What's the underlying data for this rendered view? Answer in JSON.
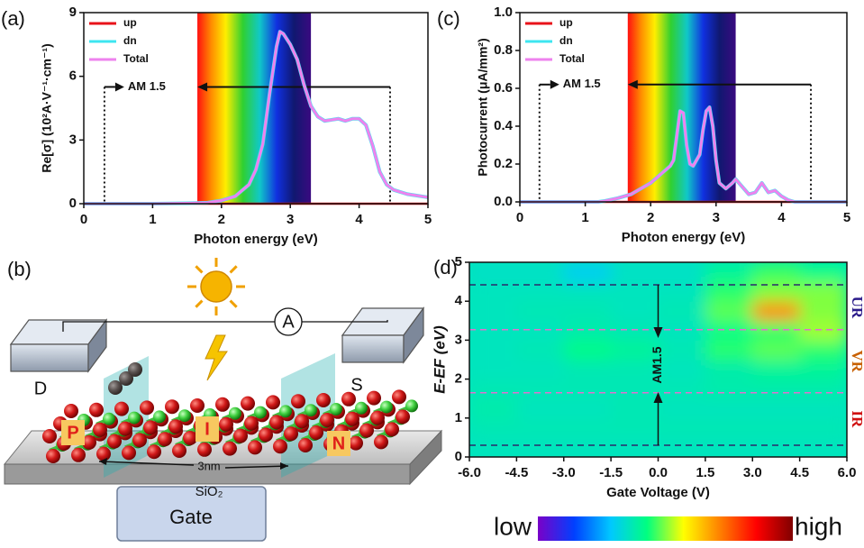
{
  "chart_data": [
    {
      "type": "line",
      "panel_label": "(a)",
      "xlabel": "Photon energy (eV)",
      "ylabel": "Re[σ] (10²A·V⁻¹·cm⁻¹)",
      "xlim": [
        0,
        5
      ],
      "xticks": [
        0,
        1,
        2,
        3,
        4,
        5
      ],
      "ylim": [
        0,
        9
      ],
      "yticks": [
        0,
        3,
        6,
        9
      ],
      "band": [
        1.65,
        3.3
      ],
      "legend": "upper left",
      "annotation": {
        "text": "AM 1.5",
        "x": [
          0.3,
          4.45
        ],
        "y": 5.5
      },
      "x": [
        0,
        0.5,
        1,
        1.5,
        1.8,
        2.0,
        2.2,
        2.4,
        2.5,
        2.6,
        2.7,
        2.8,
        2.85,
        2.9,
        3.0,
        3.1,
        3.2,
        3.3,
        3.4,
        3.5,
        3.6,
        3.7,
        3.8,
        3.9,
        4.0,
        4.1,
        4.2,
        4.3,
        4.4,
        4.5,
        4.7,
        5.0
      ],
      "series": [
        {
          "name": "up",
          "color": "#e8121a",
          "values": [
            0,
            0,
            0,
            0,
            0,
            0,
            0,
            0,
            0,
            0,
            0,
            0,
            0,
            0,
            0,
            0,
            0,
            0,
            0,
            0,
            0,
            0,
            0,
            0,
            0,
            0,
            0,
            0,
            0,
            0,
            0,
            0
          ]
        },
        {
          "name": "dn",
          "color": "#3ee6f0",
          "values": [
            0,
            0,
            0,
            0.02,
            0.05,
            0.15,
            0.35,
            0.9,
            1.6,
            2.8,
            5.2,
            7.4,
            8.1,
            8.0,
            7.5,
            6.8,
            5.6,
            4.6,
            4.1,
            3.9,
            3.95,
            4.0,
            3.9,
            4.0,
            4.0,
            3.7,
            2.7,
            1.5,
            0.9,
            0.65,
            0.45,
            0.3
          ]
        },
        {
          "name": "Total",
          "color": "#ee82ee",
          "values": [
            0,
            0,
            0,
            0.02,
            0.05,
            0.15,
            0.35,
            0.9,
            1.6,
            2.8,
            5.2,
            7.4,
            8.1,
            8.0,
            7.5,
            6.8,
            5.6,
            4.6,
            4.1,
            3.9,
            3.95,
            4.0,
            3.9,
            4.0,
            4.0,
            3.7,
            2.7,
            1.5,
            0.9,
            0.65,
            0.45,
            0.3
          ]
        }
      ]
    },
    {
      "type": "line",
      "panel_label": "(c)",
      "xlabel": "Photon energy (eV)",
      "ylabel": "Photocurrent (μA/mm²)",
      "xlim": [
        0,
        5
      ],
      "xticks": [
        0,
        1,
        2,
        3,
        4,
        5
      ],
      "ylim": [
        0,
        1
      ],
      "yticks": [
        {
          "value": 0,
          "label": "0.0"
        },
        0.2,
        0.4,
        0.6,
        0.8,
        {
          "value": 1,
          "label": "1.0"
        }
      ],
      "band": [
        1.65,
        3.3
      ],
      "legend": "upper left",
      "annotation": {
        "text": "AM 1.5",
        "x": [
          0.3,
          4.45
        ],
        "y": 0.62
      },
      "x": [
        0,
        0.5,
        1.0,
        1.2,
        1.3,
        1.5,
        1.7,
        1.9,
        2.0,
        2.1,
        2.2,
        2.3,
        2.35,
        2.4,
        2.45,
        2.5,
        2.55,
        2.6,
        2.65,
        2.75,
        2.8,
        2.85,
        2.9,
        2.95,
        3.0,
        3.05,
        3.15,
        3.25,
        3.3,
        3.4,
        3.5,
        3.6,
        3.7,
        3.8,
        3.9,
        4.0,
        4.1,
        4.2,
        5.0
      ],
      "series": [
        {
          "name": "up",
          "color": "#e8121a",
          "values": [
            0,
            0,
            0,
            0,
            0,
            0,
            0,
            0,
            0,
            0,
            0,
            0,
            0,
            0,
            0,
            0,
            0,
            0,
            0,
            0,
            0,
            0,
            0,
            0,
            0,
            0,
            0,
            0,
            0,
            0,
            0,
            0,
            0,
            0,
            0,
            0,
            0,
            0,
            0
          ]
        },
        {
          "name": "dn",
          "color": "#3ee6f0",
          "values": [
            0,
            0,
            0,
            0,
            0.005,
            0.02,
            0.04,
            0.08,
            0.1,
            0.13,
            0.16,
            0.19,
            0.22,
            0.35,
            0.48,
            0.47,
            0.3,
            0.2,
            0.19,
            0.25,
            0.38,
            0.48,
            0.5,
            0.4,
            0.22,
            0.1,
            0.07,
            0.1,
            0.12,
            0.08,
            0.04,
            0.05,
            0.1,
            0.05,
            0.06,
            0.03,
            0.01,
            0,
            0
          ]
        },
        {
          "name": "Total",
          "color": "#ee82ee",
          "values": [
            0,
            0,
            0,
            0,
            0.005,
            0.02,
            0.04,
            0.08,
            0.1,
            0.13,
            0.16,
            0.19,
            0.22,
            0.35,
            0.48,
            0.47,
            0.3,
            0.2,
            0.19,
            0.25,
            0.38,
            0.48,
            0.5,
            0.4,
            0.22,
            0.1,
            0.07,
            0.1,
            0.12,
            0.08,
            0.04,
            0.05,
            0.1,
            0.05,
            0.06,
            0.03,
            0.01,
            0,
            0
          ]
        }
      ]
    },
    {
      "type": "heatmap",
      "panel_label": "(d)",
      "xlabel": "Gate Voltage (V)",
      "ylabel": "E-EF (eV)",
      "xlim": [
        -6,
        6
      ],
      "xticks": [
        {
          "value": -6,
          "label": "-6.0"
        },
        -4.5,
        {
          "value": -3,
          "label": "-3.0"
        },
        -1.5,
        {
          "value": 0,
          "label": "0.0"
        },
        1.5,
        {
          "value": 3,
          "label": "3.0"
        },
        4.5,
        {
          "value": 6,
          "label": "6.0"
        }
      ],
      "ylim": [
        0,
        5
      ],
      "yticks": [
        0,
        1,
        2,
        3,
        4,
        5
      ],
      "x": [
        -5.25,
        -3.75,
        -2.25,
        -0.75,
        0.75,
        2.25,
        3.75,
        5.25
      ],
      "y": [
        0.25,
        0.75,
        1.25,
        1.75,
        2.25,
        2.75,
        3.25,
        3.75,
        4.25,
        4.75
      ],
      "z": [
        [
          0.36,
          0.36,
          0.36,
          0.36,
          0.36,
          0.36,
          0.36,
          0.36
        ],
        [
          0.37,
          0.37,
          0.37,
          0.37,
          0.37,
          0.37,
          0.37,
          0.37
        ],
        [
          0.38,
          0.36,
          0.36,
          0.37,
          0.36,
          0.36,
          0.36,
          0.36
        ],
        [
          0.37,
          0.37,
          0.37,
          0.37,
          0.37,
          0.38,
          0.38,
          0.38
        ],
        [
          0.36,
          0.36,
          0.37,
          0.37,
          0.36,
          0.38,
          0.4,
          0.4
        ],
        [
          0.36,
          0.37,
          0.42,
          0.4,
          0.37,
          0.45,
          0.48,
          0.45
        ],
        [
          0.36,
          0.36,
          0.38,
          0.37,
          0.36,
          0.42,
          0.45,
          0.52
        ],
        [
          0.36,
          0.37,
          0.37,
          0.36,
          0.37,
          0.48,
          0.7,
          0.5
        ],
        [
          0.36,
          0.36,
          0.36,
          0.36,
          0.36,
          0.45,
          0.5,
          0.5
        ],
        [
          0.35,
          0.35,
          0.3,
          0.35,
          0.35,
          0.4,
          0.46,
          0.42
        ]
      ],
      "colorscale": [
        "#7a00c8",
        "#0040ff",
        "#00c8ff",
        "#00ff80",
        "#ffff00",
        "#ff8000",
        "#ff0000",
        "#800000"
      ],
      "colorbar_labels": [
        "low",
        "high"
      ],
      "hlines": [
        {
          "y": 0.3,
          "color": "#2a2a6a"
        },
        {
          "y": 1.65,
          "color": "#e070d0"
        },
        {
          "y": 3.27,
          "color": "#e070d0"
        },
        {
          "y": 4.42,
          "color": "#2a2a6a"
        }
      ],
      "annotation": {
        "text": "AM1.5",
        "x": 0
      },
      "region_labels": [
        {
          "text": "IR",
          "color": "#d01010"
        },
        {
          "text": "VR",
          "color": "#c86000"
        },
        {
          "text": "UR",
          "color": "#2a1a8a"
        }
      ]
    }
  ],
  "diagram": {
    "panel_label": "(b)",
    "meter": "A",
    "drain": "D",
    "source": "S",
    "regions": [
      "P",
      "I",
      "N"
    ],
    "length": "3nm",
    "substrate": "SiO₂",
    "gate": "Gate"
  }
}
